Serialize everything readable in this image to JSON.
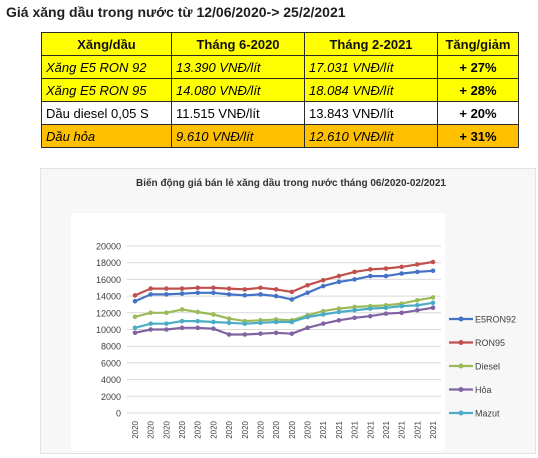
{
  "heading": "Giá xăng dầu trong nước từ 12/06/2020-> 25/2/2021",
  "table": {
    "headers": [
      "Xăng/dầu",
      "Tháng 6-2020",
      "Tháng 2-2021",
      "Tăng/giảm"
    ],
    "rows": [
      {
        "fuel": "Xăng E5 RON 92",
        "jun2020": "13.390 VNĐ/lít",
        "feb2021": "17.031 VNĐ/lít",
        "change": "+ 27%"
      },
      {
        "fuel": "Xăng E5 RON 95",
        "jun2020": "14.080 VNĐ/lít",
        "feb2021": "18.084 VNĐ/lít",
        "change": "+ 28%"
      },
      {
        "fuel": "Dầu diesel 0,05 S",
        "jun2020": "11.515 VNĐ/lít",
        "feb2021": "13.843 VNĐ/lít",
        "change": "+ 20%"
      },
      {
        "fuel": "Dầu hỏa",
        "jun2020": "9.610 VNĐ/lít",
        "feb2021": "12.610 VNĐ/lít",
        "change": "+ 31%"
      }
    ],
    "colors": {
      "yellow": "#ffff00",
      "orange": "#ffc000",
      "white": "#ffffff"
    }
  },
  "chart_data": {
    "type": "line",
    "title": "Biến động giá bán lẻ xăng dầu trong nước tháng 06/2020-02/2021",
    "xlabel": "",
    "ylabel": "",
    "ylim": [
      0,
      20000
    ],
    "yticks": [
      0,
      2000,
      4000,
      6000,
      8000,
      10000,
      12000,
      14000,
      16000,
      18000,
      20000
    ],
    "ytick_labels": [
      "0",
      "2000",
      "4000",
      "6000",
      "8000",
      "10000",
      "12000",
      "14000",
      "16000",
      "18000",
      "20000"
    ],
    "categories": [
      "2020",
      "2020",
      "2020",
      "2020",
      "2020",
      "2020",
      "2020",
      "2020",
      "2020",
      "2020",
      "2020",
      "2020",
      "2021",
      "2021",
      "2021",
      "2021",
      "2021",
      "2021",
      "2021",
      "2021"
    ],
    "grid": true,
    "legend_position": "right",
    "series": [
      {
        "name": "E5RON92",
        "color": "#4472c4",
        "values": [
          13390,
          14200,
          14200,
          14300,
          14400,
          14400,
          14200,
          14100,
          14200,
          14000,
          13600,
          14400,
          15200,
          15700,
          16000,
          16400,
          16400,
          16700,
          16900,
          17031
        ]
      },
      {
        "name": "RON95",
        "color": "#c0504d",
        "values": [
          14080,
          14900,
          14900,
          14900,
          15000,
          15000,
          14900,
          14800,
          15000,
          14800,
          14500,
          15300,
          15900,
          16400,
          16900,
          17200,
          17300,
          17500,
          17800,
          18084
        ]
      },
      {
        "name": "Diesel",
        "color": "#9bbb59",
        "values": [
          11515,
          12000,
          12000,
          12400,
          12100,
          11800,
          11300,
          11000,
          11100,
          11200,
          11100,
          11700,
          12200,
          12500,
          12700,
          12800,
          12900,
          13100,
          13500,
          13843
        ]
      },
      {
        "name": "Hỏa",
        "color": "#8064a2",
        "values": [
          9610,
          10000,
          10000,
          10200,
          10200,
          10100,
          9400,
          9400,
          9500,
          9600,
          9500,
          10200,
          10700,
          11100,
          11400,
          11600,
          11900,
          12000,
          12300,
          12610
        ]
      },
      {
        "name": "Mazut",
        "color": "#4bacc6",
        "values": [
          10200,
          10700,
          10700,
          11000,
          11000,
          10900,
          10800,
          10700,
          10800,
          10900,
          10900,
          11500,
          11800,
          12100,
          12300,
          12500,
          12600,
          12800,
          12900,
          13200
        ]
      }
    ]
  }
}
